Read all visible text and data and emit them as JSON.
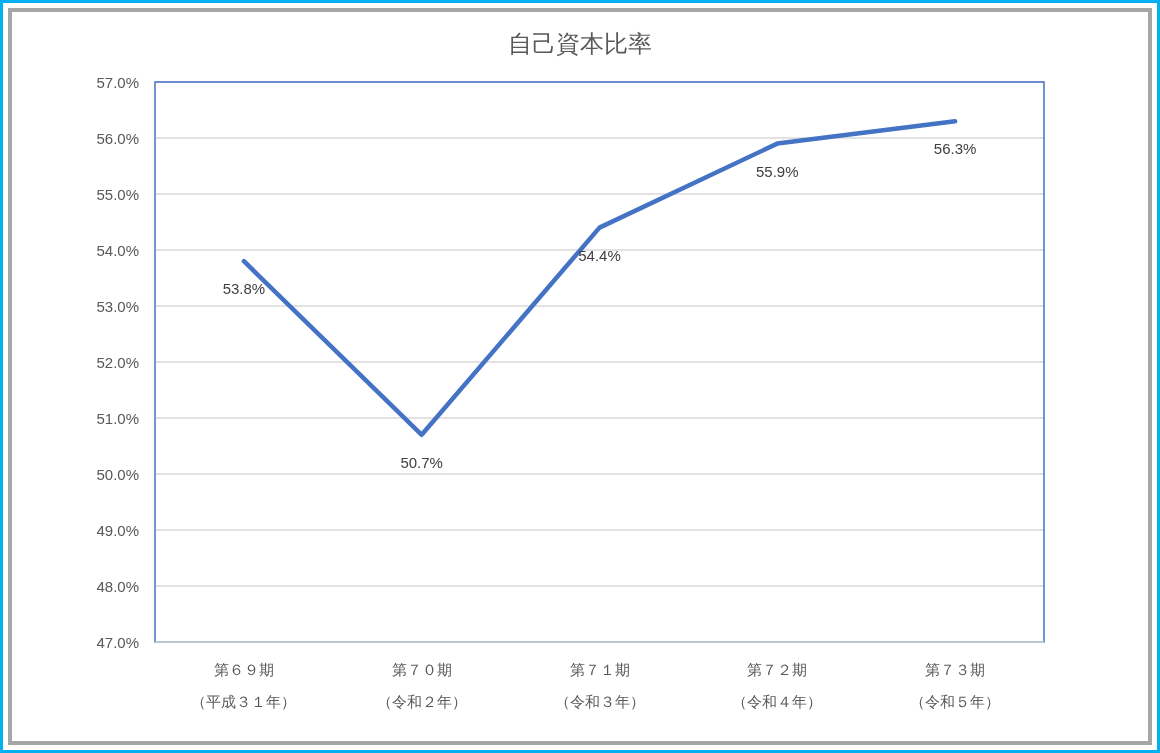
{
  "chart_data": {
    "type": "line",
    "title": "自己資本比率",
    "categories": [
      "第６９期（平成３１年）",
      "第７０期（令和２年）",
      "第７１期（令和３年）",
      "第７２期（令和４年）",
      "第７３期（令和５年）"
    ],
    "series": [
      {
        "color": "#4472c4",
        "values": [
          53.8,
          50.7,
          54.4,
          55.9,
          56.3
        ],
        "value_labels": [
          "53.8%",
          "50.7%",
          "54.4%",
          "55.9%",
          "56.3%"
        ]
      }
    ],
    "ylim": [
      47,
      57
    ],
    "yticks": [
      {
        "value": 47,
        "label": "47.0%"
      },
      {
        "value": 48,
        "label": "48.0%"
      },
      {
        "value": 49,
        "label": "49.0%"
      },
      {
        "value": 50,
        "label": "50.0%"
      },
      {
        "value": 51,
        "label": "51.0%"
      },
      {
        "value": 52,
        "label": "52.0%"
      },
      {
        "value": 53,
        "label": "53.0%"
      },
      {
        "value": 54,
        "label": "54.0%"
      },
      {
        "value": 55,
        "label": "55.0%"
      },
      {
        "value": 56,
        "label": "56.0%"
      },
      {
        "value": 57,
        "label": "57.0%"
      }
    ],
    "grid": "y"
  }
}
